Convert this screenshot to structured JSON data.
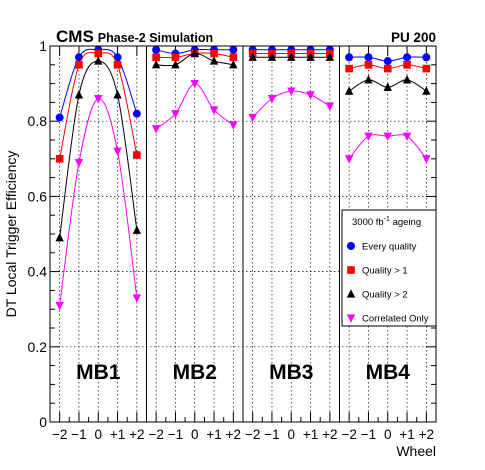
{
  "header": {
    "experiment": "CMS",
    "subtitle": "Phase-2 Simulation",
    "pileup": "PU 200"
  },
  "chart_data": {
    "type": "scatter",
    "ylabel": "DT Local Trigger Efficiency",
    "xlabel": "Wheel",
    "ylim": [
      0,
      1
    ],
    "y_ticks": [
      "0",
      "0.2",
      "0.4",
      "0.6",
      "0.8",
      "1"
    ],
    "x_ticks": [
      "−2",
      "−1",
      "0",
      "+1",
      "+2"
    ],
    "grid": true,
    "legend": {
      "placement": "right, inside MB4 panel",
      "header_prefix": "3000 fb",
      "header_exponent": "-1",
      "header_suffix": " ageing"
    },
    "series": [
      {
        "name": "Every quality",
        "color": "#0000ff",
        "marker": "circle"
      },
      {
        "name": "Quality > 1",
        "color": "#ff0000",
        "marker": "square"
      },
      {
        "name": "Quality > 2",
        "color": "#000000",
        "marker": "triangle-up"
      },
      {
        "name": "Correlated Only",
        "color": "#ff00ff",
        "marker": "triangle-down"
      }
    ],
    "panels": [
      {
        "label": "MB1",
        "x": [
          -2,
          -1,
          0,
          1,
          2
        ],
        "values": [
          [
            0.81,
            0.97,
            0.99,
            0.97,
            0.82
          ],
          [
            0.7,
            0.95,
            0.98,
            0.95,
            0.71
          ],
          [
            0.49,
            0.87,
            0.96,
            0.87,
            0.51
          ],
          [
            0.31,
            0.69,
            0.86,
            0.72,
            0.33
          ]
        ]
      },
      {
        "label": "MB2",
        "x": [
          -2,
          -1,
          0,
          1,
          2
        ],
        "values": [
          [
            0.99,
            0.98,
            0.99,
            0.99,
            0.99
          ],
          [
            0.97,
            0.97,
            0.98,
            0.98,
            0.97
          ],
          [
            0.95,
            0.95,
            0.98,
            0.96,
            0.95
          ],
          [
            0.78,
            0.82,
            0.9,
            0.83,
            0.79
          ]
        ]
      },
      {
        "label": "MB3",
        "x": [
          -2,
          -1,
          0,
          1,
          2
        ],
        "values": [
          [
            0.99,
            0.99,
            0.99,
            0.99,
            0.99
          ],
          [
            0.98,
            0.98,
            0.98,
            0.98,
            0.98
          ],
          [
            0.97,
            0.97,
            0.97,
            0.97,
            0.97
          ],
          [
            0.81,
            0.86,
            0.88,
            0.87,
            0.84
          ]
        ]
      },
      {
        "label": "MB4",
        "x": [
          -2,
          -1,
          0,
          1,
          2
        ],
        "values": [
          [
            0.97,
            0.97,
            0.96,
            0.97,
            0.97
          ],
          [
            0.94,
            0.95,
            0.94,
            0.95,
            0.94
          ],
          [
            0.88,
            0.91,
            0.89,
            0.91,
            0.88
          ],
          [
            0.7,
            0.76,
            0.76,
            0.76,
            0.7
          ]
        ]
      }
    ]
  }
}
